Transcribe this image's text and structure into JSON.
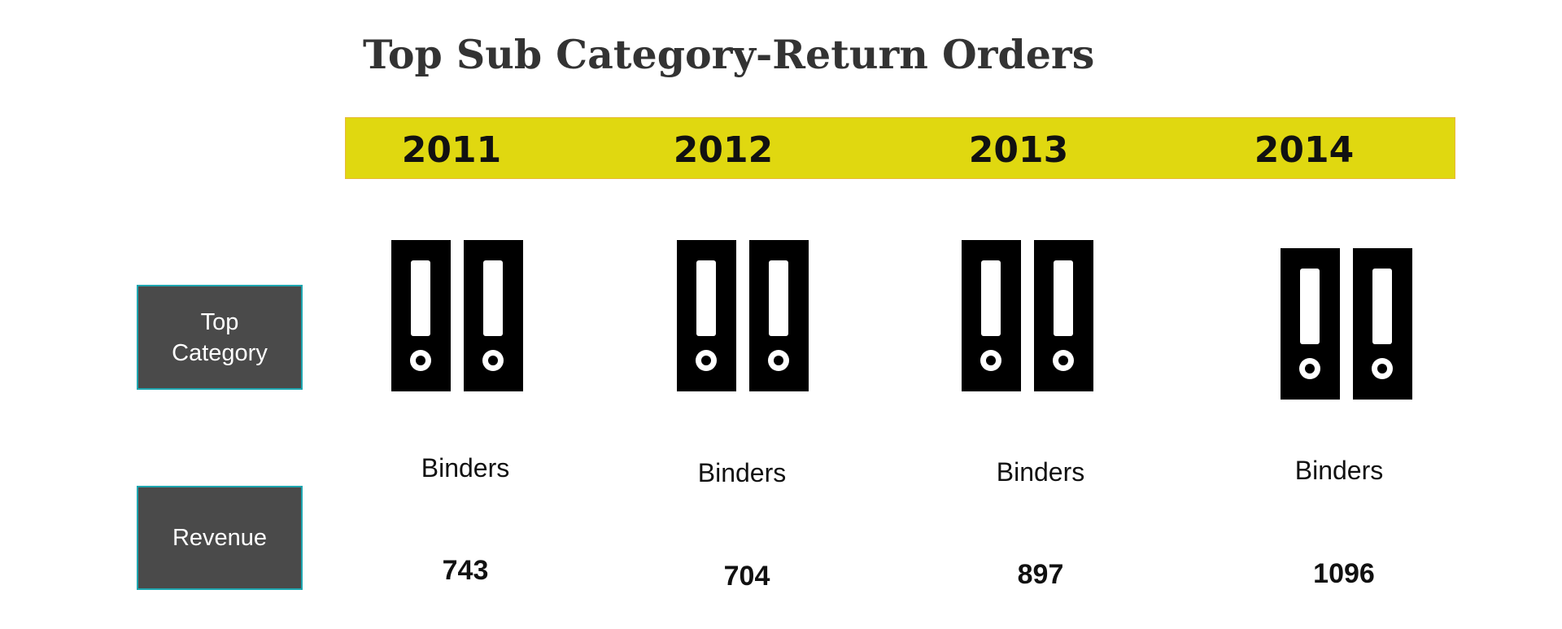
{
  "title": "Top Sub Category-Return Orders",
  "row_labels": {
    "top_category_line1": "Top",
    "top_category_line2": "Category",
    "revenue": "Revenue"
  },
  "columns": [
    {
      "year": "2011",
      "category": "Binders",
      "revenue": "743",
      "icon": "binders-icon"
    },
    {
      "year": "2012",
      "category": "Binders",
      "revenue": "704",
      "icon": "binders-icon"
    },
    {
      "year": "2013",
      "category": "Binders",
      "revenue": "897",
      "icon": "binders-icon"
    },
    {
      "year": "2014",
      "category": "Binders",
      "revenue": "1096",
      "icon": "binders-icon"
    }
  ],
  "colors": {
    "band": "#e0d810",
    "band_border": "#e8b93a",
    "label_bg": "#4a4a4a",
    "label_border": "#1fa6b0",
    "icon": "#000000"
  }
}
